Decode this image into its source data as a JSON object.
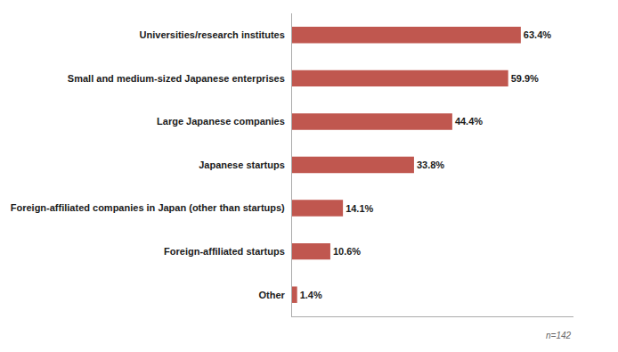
{
  "chart_data": {
    "type": "bar",
    "orientation": "horizontal",
    "categories": [
      "Other",
      "Foreign-affiliated startups",
      "Foreign-affiliated companies in Japan (other than startups)",
      "Japanese startups",
      "Large Japanese companies",
      "Small and medium-sized Japanese enterprises",
      "Universities/research institutes"
    ],
    "values": [
      1.4,
      10.6,
      14.1,
      33.8,
      44.4,
      59.9,
      63.4
    ],
    "value_labels": [
      "1.4%",
      "10.6%",
      "14.1%",
      "33.8%",
      "44.4%",
      "59.9%",
      "63.4%"
    ],
    "data_labels": true,
    "color": "#c0574f",
    "xlim": [
      0,
      78
    ],
    "tick_labels": "y",
    "grid": false,
    "annotation": "n=142"
  }
}
